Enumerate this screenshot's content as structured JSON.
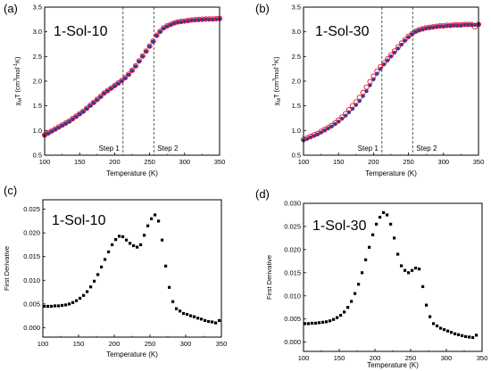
{
  "colors": {
    "open_marker": "#e8112d",
    "filled_marker": "#1f3fa6",
    "black": "#000000",
    "dashed_line": "#444444"
  },
  "chart_data": [
    {
      "panel": "(a)",
      "type": "scatter",
      "label": "1-Sol-10",
      "xlabel": "Temperature (K)",
      "ylabel_main": "χ",
      "ylabel_sub": "M",
      "ylabel_rest": "T (cm",
      "ylabel_sup1": "3",
      "ylabel_mid": "mol",
      "ylabel_sup2": "-1",
      "ylabel_end": "K)",
      "xlim": [
        100,
        350
      ],
      "ylim": [
        0.5,
        3.5
      ],
      "xticks": [
        100,
        150,
        200,
        250,
        300,
        350
      ],
      "yticks": [
        0.5,
        1.0,
        1.5,
        2.0,
        2.5,
        3.0,
        3.5
      ],
      "ytick_labels": [
        "0.5",
        "1.0",
        "1.5",
        "2.0",
        "2.5",
        "3.0",
        "3.5"
      ],
      "vlines": [
        {
          "x": 212,
          "label": "Step 1"
        },
        {
          "x": 256,
          "label": "Step 2"
        }
      ],
      "series": [
        {
          "style": "filled",
          "x": [
            100,
            105,
            110,
            115,
            120,
            125,
            130,
            135,
            140,
            145,
            150,
            155,
            160,
            165,
            170,
            175,
            180,
            185,
            190,
            195,
            200,
            205,
            210,
            215,
            220,
            225,
            230,
            235,
            240,
            245,
            250,
            255,
            260,
            265,
            270,
            275,
            280,
            285,
            290,
            295,
            300,
            305,
            310,
            315,
            320,
            325,
            330,
            335,
            340,
            345,
            350
          ],
          "y": [
            0.9,
            0.94,
            0.98,
            1.02,
            1.06,
            1.1,
            1.14,
            1.18,
            1.23,
            1.28,
            1.33,
            1.38,
            1.44,
            1.5,
            1.56,
            1.62,
            1.68,
            1.75,
            1.8,
            1.85,
            1.9,
            1.95,
            2.0,
            2.06,
            2.13,
            2.21,
            2.3,
            2.4,
            2.5,
            2.6,
            2.7,
            2.8,
            2.92,
            3.0,
            3.07,
            3.11,
            3.14,
            3.17,
            3.19,
            3.2,
            3.21,
            3.22,
            3.23,
            3.235,
            3.24,
            3.245,
            3.25,
            3.25,
            3.25,
            3.255,
            3.26
          ]
        },
        {
          "style": "open",
          "x": [
            100,
            105,
            110,
            115,
            120,
            125,
            130,
            135,
            140,
            145,
            150,
            155,
            160,
            165,
            170,
            175,
            180,
            185,
            190,
            195,
            200,
            205,
            210,
            215,
            220,
            225,
            230,
            235,
            240,
            245,
            250,
            255,
            260,
            265,
            270,
            275,
            280,
            285,
            290,
            295,
            300,
            305,
            310,
            315,
            320,
            325,
            330,
            335,
            340,
            345,
            350
          ],
          "y": [
            0.91,
            0.95,
            0.99,
            1.03,
            1.07,
            1.11,
            1.15,
            1.19,
            1.24,
            1.29,
            1.34,
            1.39,
            1.45,
            1.51,
            1.57,
            1.63,
            1.69,
            1.76,
            1.81,
            1.86,
            1.91,
            1.96,
            2.01,
            2.07,
            2.14,
            2.22,
            2.31,
            2.41,
            2.51,
            2.61,
            2.71,
            2.81,
            2.93,
            3.01,
            3.08,
            3.12,
            3.15,
            3.18,
            3.2,
            3.21,
            3.22,
            3.23,
            3.24,
            3.245,
            3.25,
            3.255,
            3.26,
            3.26,
            3.26,
            3.265,
            3.27
          ]
        }
      ]
    },
    {
      "panel": "(b)",
      "type": "scatter",
      "label": "1-Sol-30",
      "xlabel": "Temperature (K)",
      "ylabel_main": "χ",
      "ylabel_sub": "M",
      "ylabel_rest": "T (cm",
      "ylabel_sup1": "3",
      "ylabel_mid": "mol",
      "ylabel_sup2": "-1",
      "ylabel_end": "K)",
      "xlim": [
        100,
        350
      ],
      "ylim": [
        0.5,
        3.5
      ],
      "xticks": [
        100,
        150,
        200,
        250,
        300,
        350
      ],
      "yticks": [
        0.5,
        1.0,
        1.5,
        2.0,
        2.5,
        3.0,
        3.5
      ],
      "ytick_labels": [
        "0.5",
        "1.0",
        "1.5",
        "2.0",
        "2.5",
        "3.0",
        "3.5"
      ],
      "vlines": [
        {
          "x": 212,
          "label": "Step 1"
        },
        {
          "x": 256,
          "label": "Step 2"
        }
      ],
      "series": [
        {
          "style": "filled",
          "x": [
            100,
            105,
            110,
            115,
            120,
            125,
            130,
            135,
            140,
            145,
            150,
            155,
            160,
            165,
            170,
            175,
            180,
            185,
            190,
            195,
            200,
            205,
            210,
            215,
            220,
            225,
            230,
            235,
            240,
            245,
            250,
            255,
            260,
            265,
            270,
            275,
            280,
            285,
            290,
            295,
            300,
            305,
            310,
            315,
            320,
            325,
            330,
            335,
            340,
            345,
            350
          ],
          "y": [
            0.8,
            0.83,
            0.86,
            0.89,
            0.92,
            0.96,
            1.0,
            1.04,
            1.08,
            1.13,
            1.18,
            1.24,
            1.3,
            1.37,
            1.44,
            1.52,
            1.6,
            1.7,
            1.8,
            1.92,
            2.04,
            2.15,
            2.25,
            2.34,
            2.42,
            2.5,
            2.58,
            2.66,
            2.74,
            2.82,
            2.89,
            2.95,
            3.0,
            3.03,
            3.05,
            3.07,
            3.08,
            3.09,
            3.1,
            3.11,
            3.11,
            3.12,
            3.12,
            3.13,
            3.13,
            3.13,
            3.14,
            3.14,
            3.14,
            3.14,
            3.15
          ]
        },
        {
          "style": "open",
          "x": [
            100,
            105,
            110,
            115,
            120,
            125,
            130,
            135,
            140,
            145,
            150,
            155,
            160,
            165,
            170,
            175,
            180,
            185,
            190,
            195,
            200,
            205,
            210,
            215,
            220,
            225,
            230,
            235,
            240,
            245,
            250,
            255,
            260,
            265,
            270,
            275,
            280,
            285,
            290,
            295,
            300,
            305,
            310,
            315,
            320,
            325,
            330,
            335,
            340,
            345,
            350
          ],
          "y": [
            0.82,
            0.85,
            0.88,
            0.91,
            0.94,
            0.98,
            1.02,
            1.06,
            1.1,
            1.15,
            1.21,
            1.27,
            1.34,
            1.42,
            1.5,
            1.58,
            1.67,
            1.77,
            1.88,
            1.99,
            2.1,
            2.2,
            2.29,
            2.37,
            2.45,
            2.53,
            2.61,
            2.69,
            2.77,
            2.84,
            2.91,
            2.96,
            3.01,
            3.04,
            3.06,
            3.08,
            3.09,
            3.1,
            3.11,
            3.12,
            3.12,
            3.13,
            3.13,
            3.14,
            3.14,
            3.14,
            3.15,
            3.15,
            3.15,
            3.1,
            3.15
          ]
        }
      ]
    },
    {
      "panel": "(c)",
      "type": "scatter",
      "label": "1-Sol-10",
      "xlabel": "Temperature (K)",
      "ylabel": "First Derivative",
      "xlim": [
        100,
        350
      ],
      "ylim": [
        -0.002,
        0.027
      ],
      "xticks": [
        100,
        150,
        200,
        250,
        300,
        350
      ],
      "yticks": [
        0.0,
        0.005,
        0.01,
        0.015,
        0.02,
        0.025
      ],
      "ytick_labels": [
        "0.000",
        "0.005",
        "0.010",
        "0.015",
        "0.020",
        "0.025"
      ],
      "series": [
        {
          "style": "filled",
          "x": [
            102,
            107,
            112,
            117,
            122,
            127,
            132,
            137,
            142,
            147,
            152,
            157,
            162,
            167,
            172,
            177,
            182,
            187,
            192,
            197,
            202,
            207,
            212,
            217,
            222,
            227,
            232,
            237,
            242,
            247,
            252,
            257,
            262,
            267,
            272,
            277,
            282,
            287,
            292,
            297,
            302,
            307,
            312,
            317,
            322,
            327,
            332,
            337,
            342,
            347
          ],
          "y": [
            0.0045,
            0.0045,
            0.0045,
            0.0046,
            0.0046,
            0.0047,
            0.0048,
            0.005,
            0.0053,
            0.0057,
            0.0062,
            0.0068,
            0.0076,
            0.0086,
            0.0098,
            0.0112,
            0.0128,
            0.0144,
            0.016,
            0.0175,
            0.0186,
            0.0193,
            0.0192,
            0.0185,
            0.0178,
            0.0173,
            0.017,
            0.0175,
            0.0195,
            0.0215,
            0.023,
            0.0238,
            0.0225,
            0.0185,
            0.013,
            0.0085,
            0.0055,
            0.004,
            0.0035,
            0.003,
            0.0028,
            0.0025,
            0.0023,
            0.002,
            0.0018,
            0.0015,
            0.0013,
            0.0012,
            0.001,
            0.0015
          ]
        }
      ]
    },
    {
      "panel": "(d)",
      "type": "scatter",
      "label": "1-Sol-30",
      "xlabel": "Temperature (K)",
      "ylabel": "First Derivative",
      "xlim": [
        100,
        350
      ],
      "ylim": [
        -0.002,
        0.03
      ],
      "xticks": [
        100,
        150,
        200,
        250,
        300,
        350
      ],
      "yticks": [
        0.0,
        0.005,
        0.01,
        0.015,
        0.02,
        0.025,
        0.03
      ],
      "ytick_labels": [
        "0.000",
        "0.005",
        "0.010",
        "0.015",
        "0.020",
        "0.025",
        "0.030"
      ],
      "series": [
        {
          "style": "filled",
          "x": [
            102,
            107,
            112,
            117,
            122,
            127,
            132,
            137,
            142,
            147,
            152,
            157,
            162,
            167,
            172,
            177,
            182,
            187,
            192,
            197,
            202,
            207,
            212,
            217,
            222,
            227,
            232,
            237,
            242,
            247,
            252,
            257,
            262,
            267,
            272,
            277,
            282,
            287,
            292,
            297,
            302,
            307,
            312,
            317,
            322,
            327,
            332,
            337,
            342
          ],
          "y": [
            0.004,
            0.004,
            0.0041,
            0.0041,
            0.0042,
            0.0043,
            0.0044,
            0.0046,
            0.0049,
            0.0053,
            0.0058,
            0.0065,
            0.0075,
            0.0088,
            0.0105,
            0.0125,
            0.015,
            0.0178,
            0.0205,
            0.0232,
            0.0255,
            0.027,
            0.028,
            0.0275,
            0.0255,
            0.0225,
            0.019,
            0.0165,
            0.0155,
            0.015,
            0.0155,
            0.016,
            0.0158,
            0.012,
            0.008,
            0.0055,
            0.004,
            0.0035,
            0.003,
            0.0027,
            0.0024,
            0.0021,
            0.0018,
            0.0016,
            0.0014,
            0.0012,
            0.0011,
            0.001,
            0.0015
          ]
        }
      ]
    }
  ]
}
